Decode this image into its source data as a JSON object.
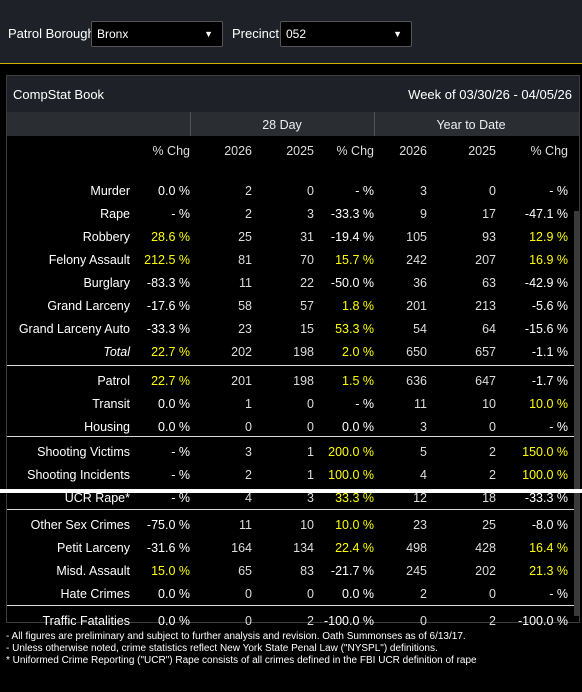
{
  "filters": {
    "borough_label": "Patrol Borough:",
    "borough_value": "Bronx",
    "precinct_label": "Precinct:",
    "precinct_value": "052"
  },
  "panel": {
    "title": "CompStat Book",
    "week": "Week of 03/30/26 - 04/05/26"
  },
  "groups": {
    "period1": "28 Day",
    "period2": "Year to Date"
  },
  "header": [
    "% Chg",
    "2026",
    "2025",
    "% Chg",
    "2026",
    "2025",
    "% Chg"
  ],
  "rows": [
    {
      "label": "Murder",
      "vals": [
        "0.0 %",
        "2",
        "0",
        "- %",
        "3",
        "0",
        "- %"
      ]
    },
    {
      "label": "Rape",
      "vals": [
        "- %",
        "2",
        "3",
        "-33.3 %",
        "9",
        "17",
        "-47.1 %"
      ]
    },
    {
      "label": "Robbery",
      "vals": [
        "28.6 %",
        "25",
        "31",
        "-19.4 %",
        "105",
        "93",
        "12.9 %"
      ]
    },
    {
      "label": "Felony Assault",
      "vals": [
        "212.5 %",
        "81",
        "70",
        "15.7 %",
        "242",
        "207",
        "16.9 %"
      ]
    },
    {
      "label": "Burglary",
      "vals": [
        "-83.3 %",
        "11",
        "22",
        "-50.0 %",
        "36",
        "63",
        "-42.9 %"
      ]
    },
    {
      "label": "Grand Larceny",
      "vals": [
        "-17.6 %",
        "58",
        "57",
        "1.8 %",
        "201",
        "213",
        "-5.6 %"
      ]
    },
    {
      "label": "Grand Larceny Auto",
      "vals": [
        "-33.3 %",
        "23",
        "15",
        "53.3 %",
        "54",
        "64",
        "-15.6 %"
      ]
    },
    {
      "label": "Total",
      "vals": [
        "22.7 %",
        "202",
        "198",
        "2.0 %",
        "650",
        "657",
        "-1.1 %"
      ]
    },
    {
      "label": "Patrol",
      "vals": [
        "22.7 %",
        "201",
        "198",
        "1.5 %",
        "636",
        "647",
        "-1.7 %"
      ]
    },
    {
      "label": "Transit",
      "vals": [
        "0.0 %",
        "1",
        "0",
        "- %",
        "11",
        "10",
        "10.0 %"
      ]
    },
    {
      "label": "Housing",
      "vals": [
        "0.0 %",
        "0",
        "0",
        "0.0 %",
        "3",
        "0",
        "- %"
      ]
    },
    {
      "label": "Shooting Victims",
      "vals": [
        "- %",
        "3",
        "1",
        "200.0 %",
        "5",
        "2",
        "150.0 %"
      ]
    },
    {
      "label": "Shooting Incidents",
      "vals": [
        "- %",
        "2",
        "1",
        "100.0 %",
        "4",
        "2",
        "100.0 %"
      ]
    },
    {
      "label": "UCR Rape*",
      "vals": [
        "- %",
        "4",
        "3",
        "33.3 %",
        "12",
        "18",
        "-33.3 %"
      ]
    },
    {
      "label": "Other Sex Crimes",
      "vals": [
        "-75.0 %",
        "11",
        "10",
        "10.0 %",
        "23",
        "25",
        "-8.0 %"
      ]
    },
    {
      "label": "Petit Larceny",
      "vals": [
        "-31.6 %",
        "164",
        "134",
        "22.4 %",
        "498",
        "428",
        "16.4 %"
      ]
    },
    {
      "label": "Misd. Assault",
      "vals": [
        "15.0 %",
        "65",
        "83",
        "-21.7 %",
        "245",
        "202",
        "21.3 %"
      ]
    },
    {
      "label": "Hate Crimes",
      "vals": [
        "0.0 %",
        "0",
        "0",
        "0.0 %",
        "2",
        "0",
        "- %"
      ]
    },
    {
      "label": "Traffic Fatalities",
      "vals": [
        "0.0 %",
        "0",
        "2",
        "-100.0 %",
        "0",
        "2",
        "-100.0 %"
      ]
    }
  ],
  "colors": {
    "highlight": "#ffff00",
    "header_bg": "#1e2228",
    "accent_line": "#c8b400"
  },
  "footer": [
    "- All figures are preliminary and subject to further analysis and revision. Oath Summonses as of 6/13/17.",
    "- Unless otherwise noted, crime statistics reflect New York State Penal Law (\"NYSPL\") definitions.",
    "* Uniformed Crime Reporting (\"UCR\") Rape consists of all crimes defined in the FBI UCR definition of rape"
  ]
}
